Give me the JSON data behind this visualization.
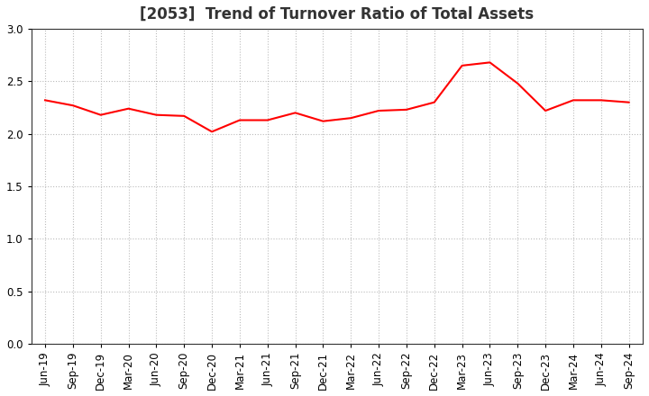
{
  "title": "[2053]  Trend of Turnover Ratio of Total Assets",
  "x_labels": [
    "Jun-19",
    "Sep-19",
    "Dec-19",
    "Mar-20",
    "Jun-20",
    "Sep-20",
    "Dec-20",
    "Mar-21",
    "Jun-21",
    "Sep-21",
    "Dec-21",
    "Mar-22",
    "Jun-22",
    "Sep-22",
    "Dec-22",
    "Mar-23",
    "Jun-23",
    "Sep-23",
    "Dec-23",
    "Mar-24",
    "Jun-24",
    "Sep-24"
  ],
  "y_values": [
    2.32,
    2.27,
    2.18,
    2.24,
    2.18,
    2.17,
    2.02,
    2.13,
    2.13,
    2.2,
    2.12,
    2.15,
    2.22,
    2.23,
    2.3,
    2.65,
    2.68,
    2.48,
    2.22,
    2.32,
    2.32,
    2.3
  ],
  "line_color": "#FF0000",
  "line_width": 1.5,
  "ylim": [
    0.0,
    3.0
  ],
  "yticks": [
    0.0,
    0.5,
    1.0,
    1.5,
    2.0,
    2.5,
    3.0
  ],
  "background_color": "#ffffff",
  "grid_color": "#bbbbbb",
  "title_color": "#333333",
  "title_fontsize": 12,
  "tick_fontsize": 8.5
}
